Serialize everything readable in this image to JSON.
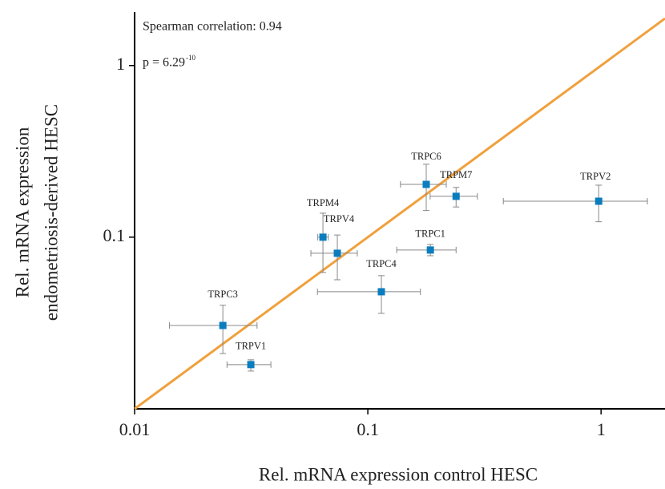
{
  "chart_data": {
    "type": "scatter",
    "x_label": "Rel. mRNA expression control HESC",
    "y_label": [
      "Rel. mRNA expression",
      "endometriosis-derived HESC"
    ],
    "annotations": [
      "Spearman correlation: 0.94",
      "p = 6.29",
      "-10"
    ],
    "categories": [
      "TRPC3",
      "TRPV1",
      "TRPM4",
      "TRPV4",
      "TRPC4",
      "TRPC1",
      "TRPC6",
      "TRPM7",
      "TRPV2"
    ],
    "x": [
      0.0239,
      0.0315,
      0.0642,
      0.074,
      0.1143,
      0.1854,
      0.178,
      0.239,
      0.977
    ],
    "values": [
      0.0306,
      0.0181,
      0.1,
      0.0806,
      0.0481,
      0.0842,
      0.203,
      0.173,
      0.162
    ],
    "x_min": [
      0.0141,
      0.0249,
      0.061,
      0.057,
      0.0608,
      0.133,
      0.138,
      0.185,
      0.381
    ],
    "x_max": [
      0.0335,
      0.0384,
      0.0677,
      0.0901,
      0.168,
      0.239,
      0.217,
      0.295,
      1.58
    ],
    "y_min": [
      0.021,
      0.0166,
      0.0623,
      0.0565,
      0.036,
      0.078,
      0.143,
      0.15,
      0.123
    ],
    "y_max": [
      0.0401,
      0.0193,
      0.138,
      0.103,
      0.0597,
      0.0907,
      0.266,
      0.195,
      0.201
    ],
    "color": "#0a7dbf",
    "error_color": "#888888",
    "identity_line": {
      "color": "#f0a03c"
    },
    "log_x": true,
    "log_y": true,
    "xlim": [
      0.01,
      1.88
    ],
    "ylim": [
      0.01,
      2.05
    ],
    "xticks": [
      0.01,
      0.1,
      1
    ],
    "yticks": [
      0.1,
      1
    ]
  }
}
